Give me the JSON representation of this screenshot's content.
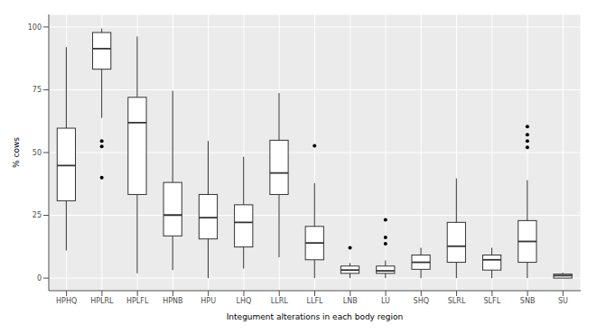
{
  "chart_data": {
    "type": "boxplot",
    "x_label": "Integument alterations in each body region",
    "y_label": "% cows",
    "categories": [
      "HPHQ",
      "HPLRL",
      "HPLFL",
      "HPNB",
      "HPU",
      "LHQ",
      "LLRL",
      "LLFL",
      "LNB",
      "LU",
      "SHQ",
      "SLRL",
      "SLFL",
      "SNB",
      "SU"
    ],
    "boxes": [
      {
        "min": 11,
        "q1": 30.8,
        "median": 44.8,
        "q3": 59.7,
        "max": 92,
        "outliers": []
      },
      {
        "min": 63.8,
        "q1": 83.2,
        "median": 91.4,
        "q3": 97.8,
        "max": 99.4,
        "outliers": [
          54.6,
          52.4,
          40
        ]
      },
      {
        "min": 1.9,
        "q1": 33.3,
        "median": 61.9,
        "q3": 72,
        "max": 96.2,
        "outliers": []
      },
      {
        "min": 3.2,
        "q1": 16.8,
        "median": 25.1,
        "q3": 38.1,
        "max": 74.6,
        "outliers": []
      },
      {
        "min": 0,
        "q1": 15.6,
        "median": 24.1,
        "q3": 33.3,
        "max": 54.6,
        "outliers": []
      },
      {
        "min": 3.8,
        "q1": 12.4,
        "median": 22.2,
        "q3": 29.2,
        "max": 48.3,
        "outliers": []
      },
      {
        "min": 8.3,
        "q1": 33.3,
        "median": 41.9,
        "q3": 54.9,
        "max": 73.7,
        "outliers": []
      },
      {
        "min": 0,
        "q1": 7.3,
        "median": 14,
        "q3": 20.6,
        "max": 37.8,
        "outliers": [
          52.7
        ]
      },
      {
        "min": 0,
        "q1": 1.9,
        "median": 3.2,
        "q3": 4.8,
        "max": 6,
        "outliers": [
          12.1
        ]
      },
      {
        "min": 0,
        "q1": 1.9,
        "median": 2.9,
        "q3": 4.8,
        "max": 7,
        "outliers": [
          13.7,
          16.2,
          23.2
        ]
      },
      {
        "min": 0,
        "q1": 3.5,
        "median": 6.3,
        "q3": 9.2,
        "max": 12.1,
        "outliers": []
      },
      {
        "min": 0,
        "q1": 6.3,
        "median": 12.7,
        "q3": 22.2,
        "max": 39.7,
        "outliers": []
      },
      {
        "min": 0,
        "q1": 3.2,
        "median": 7.3,
        "q3": 9.2,
        "max": 12.1,
        "outliers": []
      },
      {
        "min": 0,
        "q1": 6.3,
        "median": 14.6,
        "q3": 22.9,
        "max": 39,
        "outliers": [
          60.3,
          57.1,
          54.6,
          52.1
        ]
      },
      {
        "min": 0,
        "q1": 0,
        "median": 1,
        "q3": 1.6,
        "max": 2.2,
        "outliers": []
      }
    ],
    "ylim": [
      -5,
      105
    ],
    "yticks": [
      0,
      25,
      50,
      75,
      100
    ],
    "grid": true
  }
}
